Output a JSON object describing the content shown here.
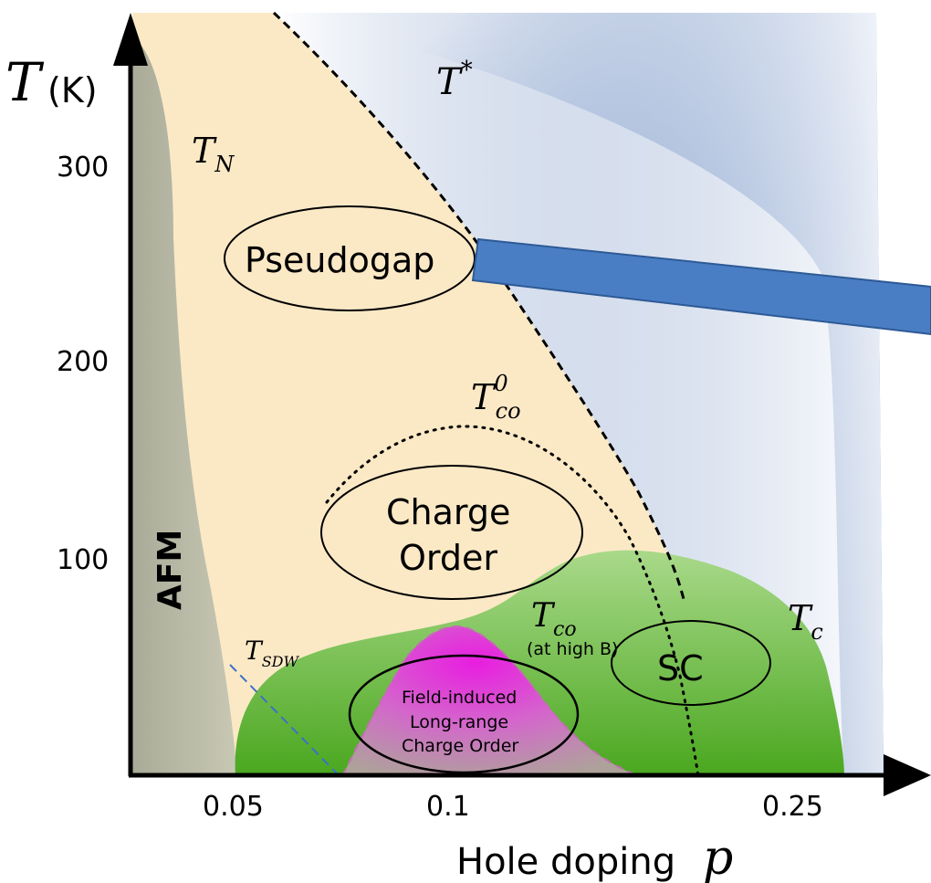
{
  "axes": {
    "y_label_symbol": "T",
    "y_label_unit": "(K)",
    "x_label_text": "Hole doping",
    "x_label_symbol": "p",
    "y_ticks": [
      "300",
      "200",
      "100"
    ],
    "x_ticks": [
      "0.05",
      "0.1",
      "0.25"
    ]
  },
  "regions": {
    "afm": "AFM",
    "pseudogap": "Pseudogap",
    "charge_order_line1": "Charge",
    "charge_order_line2": "Order",
    "sc": "SC",
    "field_induced_line1": "Field-induced",
    "field_induced_line2": "Long-range",
    "field_induced_line3": "Charge Order"
  },
  "lines": {
    "t_star_base": "T",
    "t_star_sup": "*",
    "t_n_base": "T",
    "t_n_sub": "N",
    "t_co0_base": "T",
    "t_co0_sub": "co",
    "t_co0_sup": "0",
    "t_co_base": "T",
    "t_co_sub": "co",
    "t_co_note": "(at high B)",
    "t_sdw_base": "T",
    "t_sdw_sub": "SDW",
    "t_c_base": "T",
    "t_c_sub": "c"
  },
  "colors": {
    "afm": "#b5b8a4",
    "pseudogap": "#fbe9c6",
    "sc": "#5bb033",
    "pseudogap_to_blue": "#3f6bb0",
    "field_induced": "#e040d8",
    "arrow_bar": "#4a7ec4"
  }
}
